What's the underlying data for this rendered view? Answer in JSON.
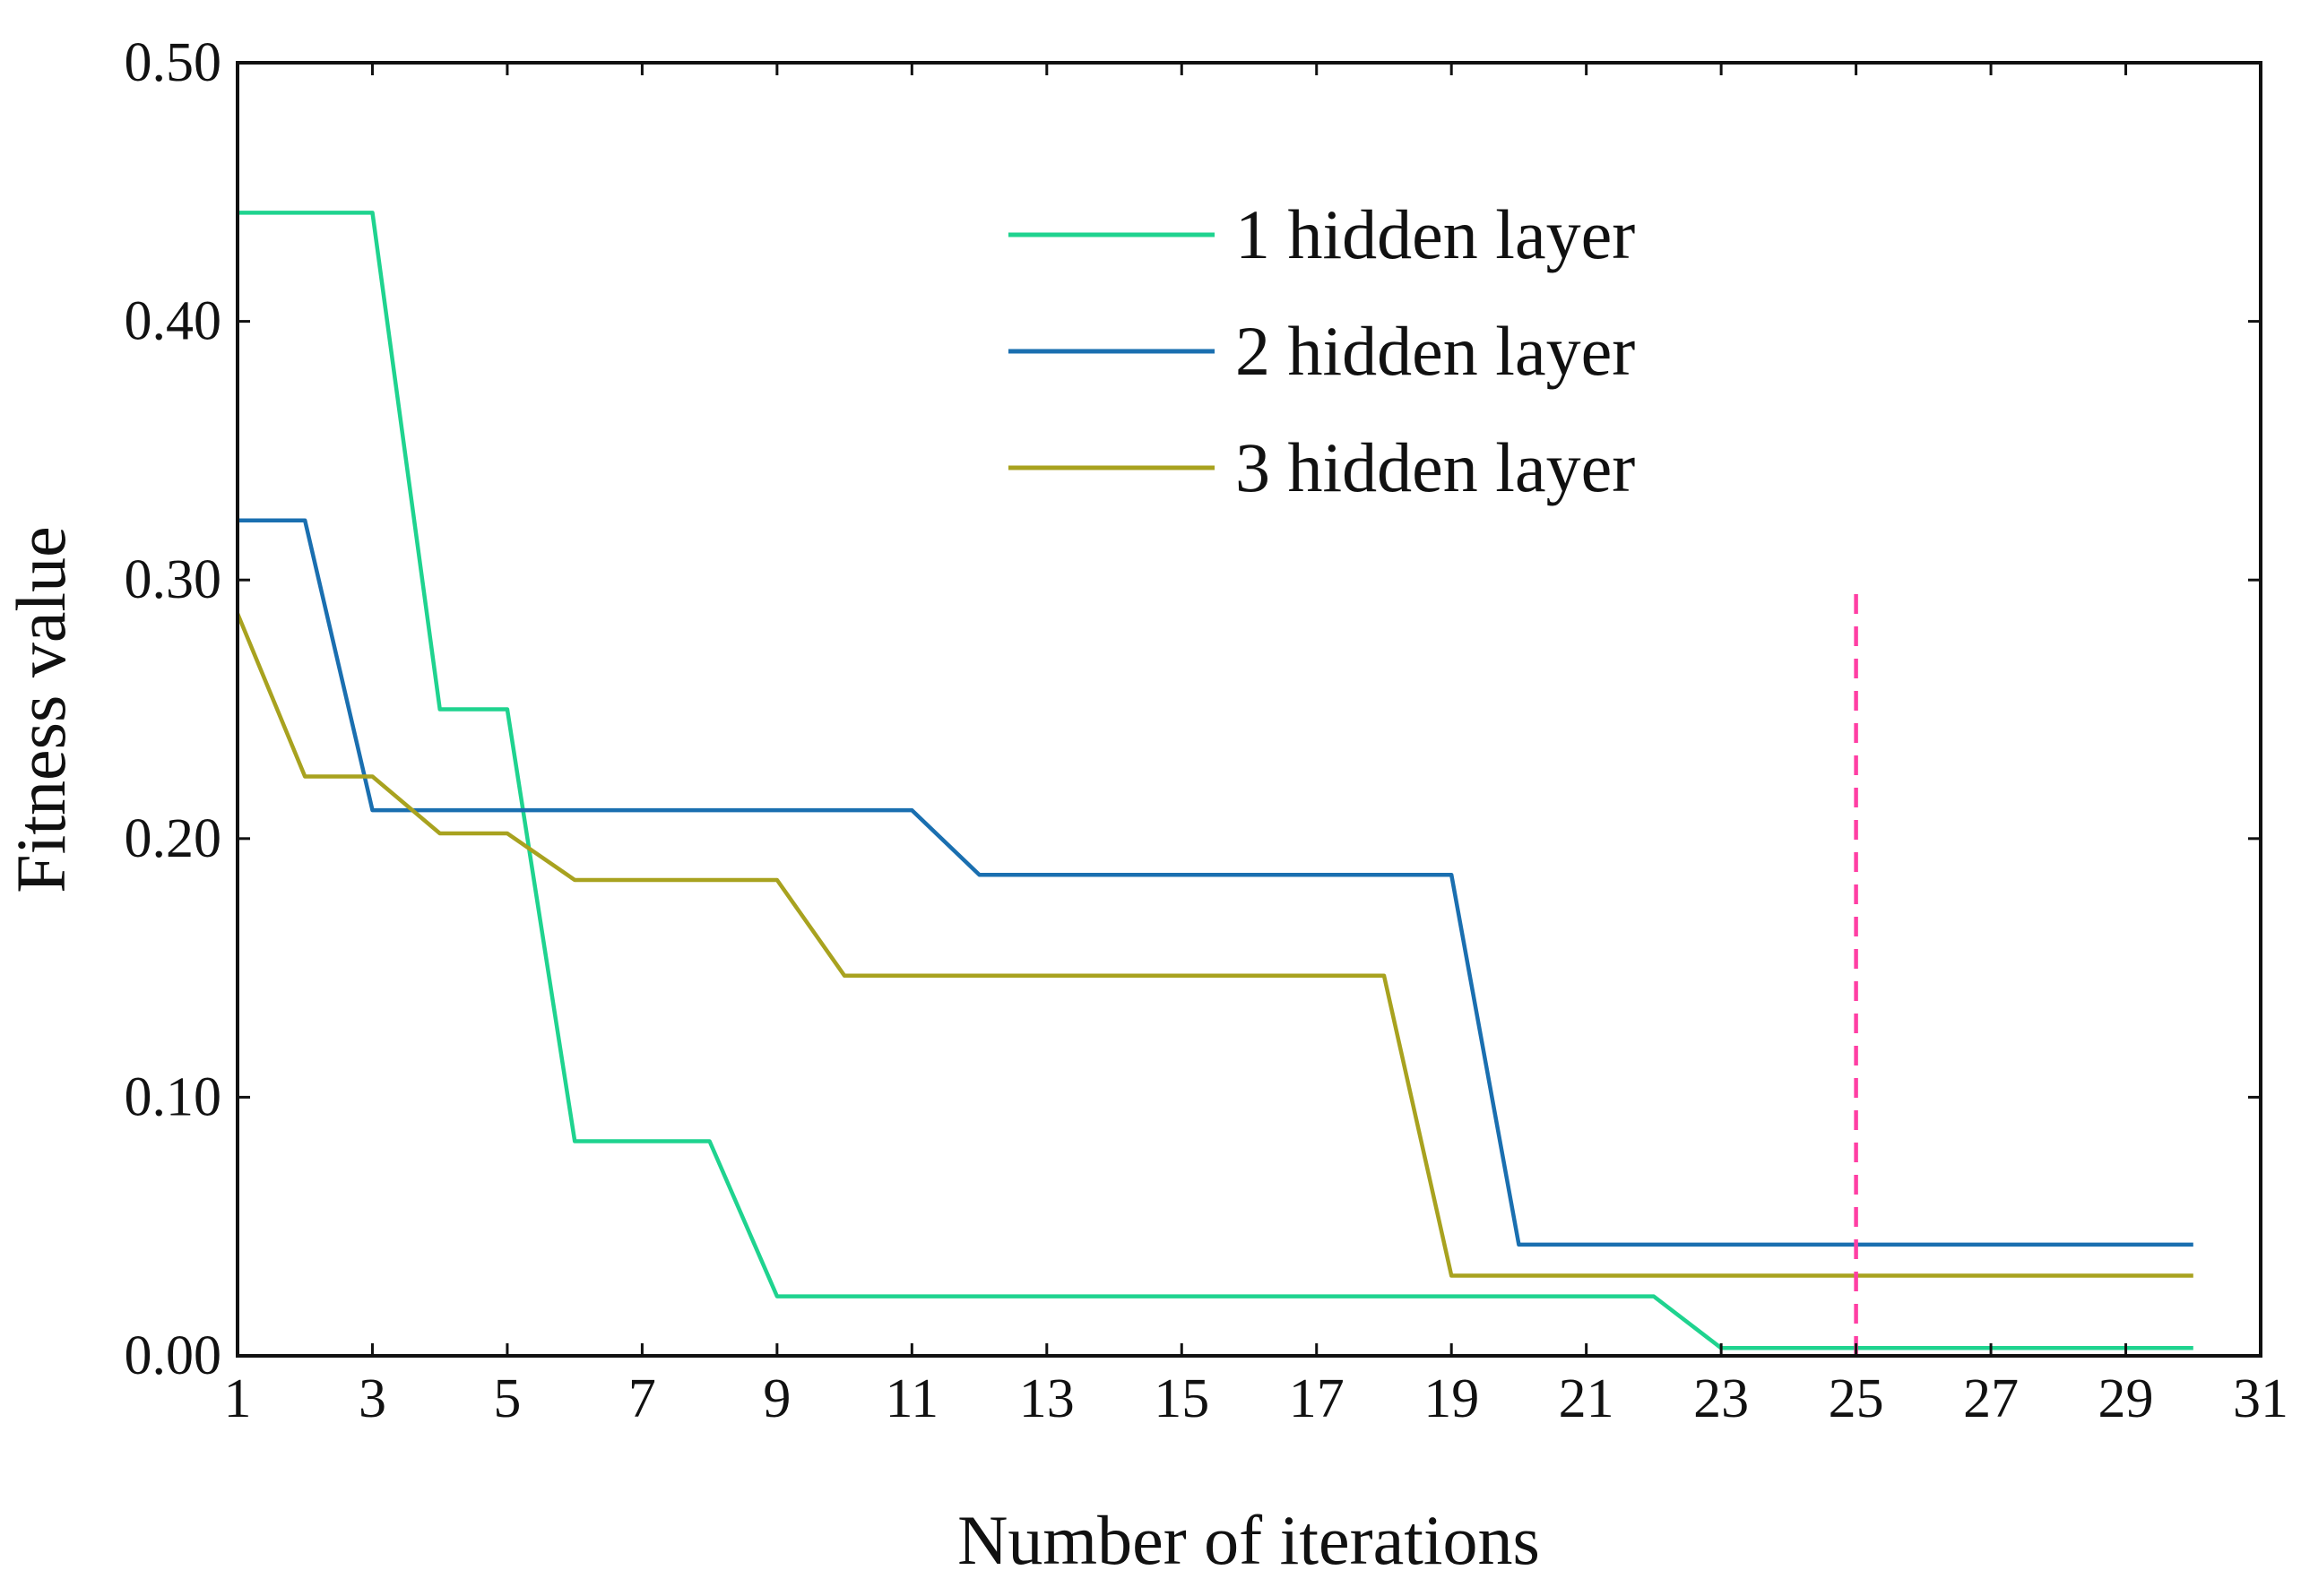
{
  "chart_data": {
    "type": "line",
    "title": "",
    "xlabel": "Number of iterations",
    "ylabel": "Fitness value",
    "xlim": [
      1,
      31
    ],
    "ylim": [
      0,
      0.5
    ],
    "x_ticks": [
      1,
      3,
      5,
      7,
      9,
      11,
      13,
      15,
      17,
      19,
      21,
      23,
      25,
      27,
      29,
      31
    ],
    "x_tick_labels": [
      "1",
      "3",
      "5",
      "7",
      "9",
      "11",
      "13",
      "15",
      "17",
      "19",
      "21",
      "23",
      "25",
      "27",
      "29",
      "31"
    ],
    "y_ticks": [
      0,
      0.1,
      0.2,
      0.3,
      0.4,
      0.5
    ],
    "y_tick_labels": [
      "0.00",
      "0.10",
      "0.20",
      "0.30",
      "0.40",
      "0.50"
    ],
    "grid": false,
    "legend_position": "top-right",
    "x": [
      1,
      2,
      3,
      4,
      5,
      6,
      7,
      8,
      9,
      10,
      11,
      12,
      13,
      14,
      15,
      16,
      17,
      18,
      19,
      20,
      21,
      22,
      23,
      24,
      25,
      26,
      27,
      28,
      29,
      30
    ],
    "series": [
      {
        "name": "1 hidden layer",
        "color": "#1fd38f",
        "values": [
          0.442,
          0.442,
          0.442,
          0.25,
          0.25,
          0.083,
          0.083,
          0.083,
          0.023,
          0.023,
          0.023,
          0.023,
          0.023,
          0.023,
          0.023,
          0.023,
          0.023,
          0.023,
          0.023,
          0.023,
          0.023,
          0.023,
          0.003,
          0.003,
          0.003,
          0.003,
          0.003,
          0.003,
          0.003,
          0.003
        ]
      },
      {
        "name": "2 hidden layer",
        "color": "#1a6fb0",
        "values": [
          0.323,
          0.323,
          0.211,
          0.211,
          0.211,
          0.211,
          0.211,
          0.211,
          0.211,
          0.211,
          0.211,
          0.186,
          0.186,
          0.186,
          0.186,
          0.186,
          0.186,
          0.186,
          0.186,
          0.043,
          0.043,
          0.043,
          0.043,
          0.043,
          0.043,
          0.043,
          0.043,
          0.043,
          0.043,
          0.043
        ]
      },
      {
        "name": "3 hidden layer",
        "color": "#a8a21f",
        "values": [
          0.287,
          0.224,
          0.224,
          0.202,
          0.202,
          0.184,
          0.184,
          0.184,
          0.184,
          0.147,
          0.147,
          0.147,
          0.147,
          0.147,
          0.147,
          0.147,
          0.147,
          0.147,
          0.031,
          0.031,
          0.031,
          0.031,
          0.031,
          0.031,
          0.031,
          0.031,
          0.031,
          0.031,
          0.031,
          0.031
        ]
      }
    ],
    "reference_line": {
      "orientation": "vertical",
      "style": "dashed",
      "x": 25,
      "y_range": [
        0,
        0.297
      ],
      "color": "#ff3fa4"
    }
  }
}
